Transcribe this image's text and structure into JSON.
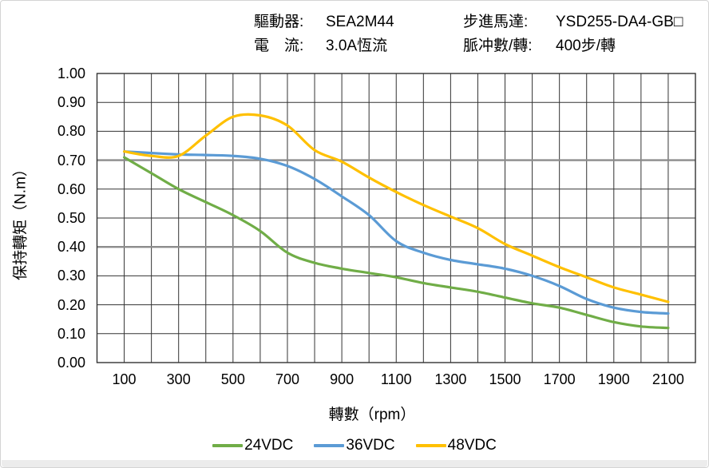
{
  "header": {
    "left": [
      {
        "label": "驅動器:",
        "value": "SEA2M44"
      },
      {
        "label": "電　流:",
        "value": "3.0A恆流"
      }
    ],
    "right": [
      {
        "label": "步進馬達:",
        "value": "YSD255-DA4-GB□"
      },
      {
        "label": "脈冲數/轉:",
        "value": "400步/轉"
      }
    ]
  },
  "chart_data": {
    "type": "line",
    "title": "",
    "xlabel": "轉數（rpm）",
    "ylabel": "保持轉矩（N.m）",
    "xlim": [
      0,
      2200
    ],
    "ylim": [
      0.0,
      1.0
    ],
    "grid": {
      "x_step_rpm": 100,
      "y_step": 0.1,
      "major_y_lines": [
        0.4,
        0.7
      ],
      "line_color": "#333333",
      "major_line_color": "#8c8c8c"
    },
    "xticks": [
      "100",
      "300",
      "500",
      "700",
      "900",
      "1100",
      "1300",
      "1500",
      "1700",
      "1900",
      "2100"
    ],
    "xtick_values": [
      100,
      300,
      500,
      700,
      900,
      1100,
      1300,
      1500,
      1700,
      1900,
      2100
    ],
    "yticks": [
      "1.00",
      "0.90",
      "0.80",
      "0.70",
      "0.60",
      "0.50",
      "0.40",
      "0.30",
      "0.20",
      "0.10",
      "0.00"
    ],
    "ytick_values": [
      1.0,
      0.9,
      0.8,
      0.7,
      0.6,
      0.5,
      0.4,
      0.3,
      0.2,
      0.1,
      0.0
    ],
    "x_rpm": [
      100,
      200,
      300,
      400,
      500,
      600,
      700,
      800,
      900,
      1000,
      1100,
      1200,
      1300,
      1400,
      1500,
      1600,
      1700,
      1800,
      1900,
      2000,
      2100
    ],
    "series": [
      {
        "name": "24VDC",
        "color": "#70AD47",
        "values": [
          0.71,
          0.655,
          0.6,
          0.555,
          0.51,
          0.455,
          0.38,
          0.345,
          0.325,
          0.31,
          0.295,
          0.275,
          0.26,
          0.245,
          0.225,
          0.205,
          0.19,
          0.165,
          0.14,
          0.125,
          0.12
        ]
      },
      {
        "name": "36VDC",
        "color": "#5B9BD5",
        "values": [
          0.73,
          0.725,
          0.72,
          0.718,
          0.715,
          0.705,
          0.68,
          0.635,
          0.575,
          0.51,
          0.42,
          0.38,
          0.355,
          0.34,
          0.325,
          0.3,
          0.265,
          0.22,
          0.19,
          0.175,
          0.17
        ]
      },
      {
        "name": "48VDC",
        "color": "#FFC000",
        "values": [
          0.73,
          0.715,
          0.715,
          0.785,
          0.85,
          0.855,
          0.82,
          0.735,
          0.695,
          0.64,
          0.59,
          0.545,
          0.505,
          0.465,
          0.41,
          0.37,
          0.33,
          0.295,
          0.26,
          0.235,
          0.21
        ]
      }
    ],
    "legend_position": "bottom"
  }
}
